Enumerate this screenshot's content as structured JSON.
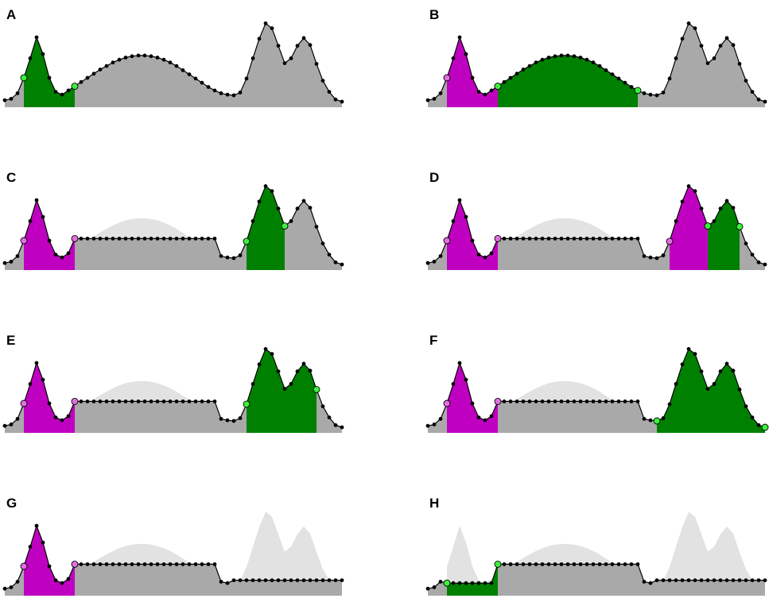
{
  "figure": {
    "colors": {
      "area": "#a9a9a9",
      "ghost": "#e2e2e2",
      "green_fill": "#008000",
      "green_marker": "#3cf03c",
      "magenta_fill": "#c000c0",
      "magenta_marker": "#e070e0",
      "line": "#000000"
    },
    "signal": [
      0.1,
      0.12,
      0.2,
      0.42,
      0.7,
      1.0,
      0.76,
      0.42,
      0.22,
      0.18,
      0.24,
      0.3,
      0.36,
      0.42,
      0.48,
      0.54,
      0.59,
      0.64,
      0.68,
      0.71,
      0.73,
      0.74,
      0.74,
      0.73,
      0.71,
      0.68,
      0.64,
      0.59,
      0.53,
      0.47,
      0.41,
      0.35,
      0.29,
      0.24,
      0.2,
      0.18,
      0.17,
      0.21,
      0.41,
      0.7,
      0.98,
      1.2,
      1.13,
      0.88,
      0.63,
      0.7,
      0.88,
      0.99,
      0.89,
      0.62,
      0.38,
      0.22,
      0.11,
      0.08
    ],
    "panels": [
      {
        "label": "A",
        "ghosts": [],
        "flats": [],
        "magenta": [],
        "green": [
          3,
          11
        ]
      },
      {
        "label": "B",
        "ghosts": [
          [
            11,
            33,
            0.45
          ]
        ],
        "flats": [],
        "magenta": [
          [
            3,
            11
          ]
        ],
        "green": [
          11,
          33,
          0.45
        ]
      },
      {
        "label": "C",
        "ghosts": [
          [
            11,
            33,
            0.45
          ]
        ],
        "flats": [
          [
            11,
            33,
            0.45
          ]
        ],
        "magenta": [
          [
            3,
            11
          ]
        ],
        "green": [
          38,
          44
        ]
      },
      {
        "label": "D",
        "ghosts": [
          [
            11,
            33,
            0.45
          ]
        ],
        "flats": [
          [
            11,
            33,
            0.45
          ]
        ],
        "magenta": [
          [
            3,
            11
          ],
          [
            38,
            44
          ]
        ],
        "green": [
          44,
          49
        ]
      },
      {
        "label": "E",
        "ghosts": [
          [
            11,
            33,
            0.45
          ]
        ],
        "flats": [
          [
            11,
            33,
            0.45
          ]
        ],
        "magenta": [
          [
            3,
            11
          ]
        ],
        "green": [
          38,
          49
        ]
      },
      {
        "label": "F",
        "ghosts": [
          [
            11,
            33,
            0.45
          ],
          [
            36,
            53,
            0.22
          ]
        ],
        "flats": [
          [
            11,
            33,
            0.45
          ]
        ],
        "magenta": [
          [
            3,
            11
          ]
        ],
        "green": [
          36,
          53,
          0.22
        ]
      },
      {
        "label": "G",
        "ghosts": [
          [
            11,
            33,
            0.45
          ],
          [
            36,
            53,
            0.22
          ]
        ],
        "flats": [
          [
            11,
            33,
            0.45
          ],
          [
            36,
            53,
            0.22
          ]
        ],
        "magenta": [
          [
            3,
            11
          ]
        ],
        "green": null
      },
      {
        "label": "H",
        "ghosts": [
          [
            3,
            11,
            0.18
          ],
          [
            11,
            33,
            0.45
          ],
          [
            36,
            53,
            0.22
          ]
        ],
        "flats": [
          [
            3,
            11,
            0.18
          ],
          [
            11,
            33,
            0.45
          ],
          [
            36,
            53,
            0.22
          ]
        ],
        "magenta": [],
        "green": [
          3,
          11,
          0.18
        ]
      }
    ]
  }
}
